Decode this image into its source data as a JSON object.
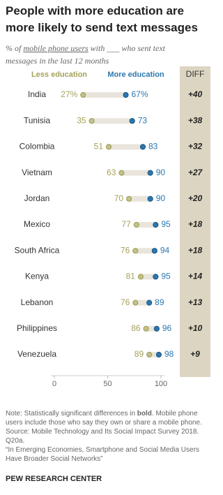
{
  "chart_data": {
    "type": "dot",
    "title": "People with more education are more likely to send text messages",
    "subtitle": {
      "before": "% of ",
      "underlined": "mobile phone users",
      "after": " with ___ who sent text messages in the last 12 months"
    },
    "categories": [
      "India",
      "Tunisia",
      "Colombia",
      "Vietnam",
      "Jordan",
      "Mexico",
      "South Africa",
      "Kenya",
      "Lebanon",
      "Philippines",
      "Venezuela"
    ],
    "series": [
      {
        "name": "Less education",
        "color": "#a3a25a",
        "values": [
          27,
          35,
          51,
          63,
          70,
          77,
          76,
          81,
          76,
          86,
          89
        ],
        "value_labels": [
          "27%",
          "35",
          "51",
          "63",
          "70",
          "77",
          "76",
          "81",
          "76",
          "86",
          "89"
        ]
      },
      {
        "name": "More education",
        "color": "#2c78b0",
        "values": [
          67,
          73,
          83,
          90,
          90,
          95,
          94,
          95,
          89,
          96,
          98
        ],
        "value_labels": [
          "67%",
          "73",
          "83",
          "90",
          "90",
          "95",
          "94",
          "95",
          "89",
          "96",
          "98"
        ]
      }
    ],
    "diff": {
      "label": "DIFF",
      "values": [
        40,
        38,
        32,
        27,
        20,
        18,
        18,
        14,
        13,
        10,
        9
      ],
      "value_labels": [
        "+40",
        "+38",
        "+32",
        "+27",
        "+20",
        "+18",
        "+18",
        "+14",
        "+13",
        "+10",
        "+9"
      ]
    },
    "xlim": [
      0,
      100
    ],
    "xticks": [
      0,
      50,
      100
    ],
    "note": {
      "before": "Note: Statistically significant differences in ",
      "bold": "bold",
      "after": ". Mobile phone users include those who say they own or share a mobile phone."
    },
    "source": "Source: Mobile Technology and Its Social Impact Survey 2018. Q20a.",
    "citation": "“In Emerging Economies, Smartphone and Social Media Users Have Broader Social Networks”",
    "footer": "PEW RESEARCH CENTER"
  }
}
